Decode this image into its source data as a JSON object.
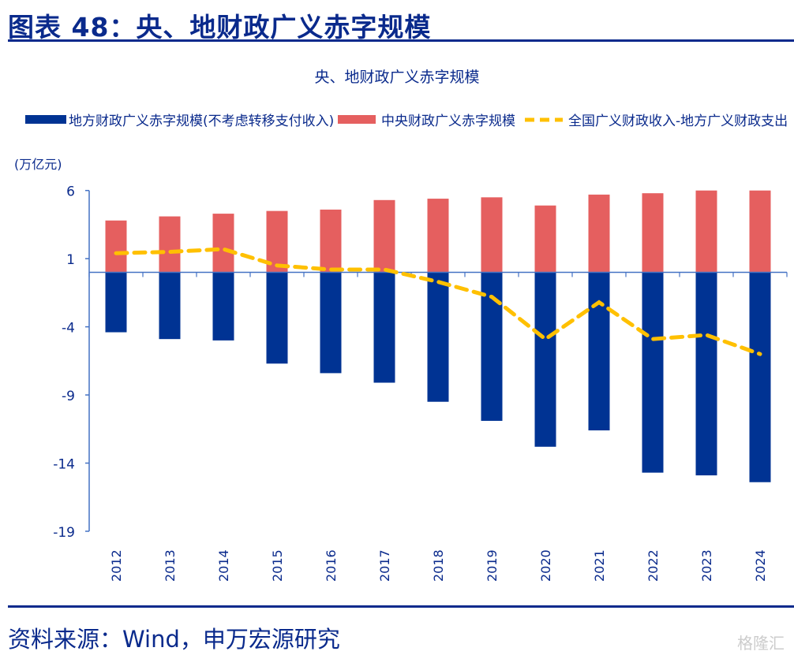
{
  "figure_title": "图表 48：央、地财政广义赤字规模",
  "source": "资料来源：Wind，申万宏源研究",
  "watermark": "格隆汇",
  "chart_data": {
    "type": "bar",
    "title": "央、地财政广义赤字规模",
    "ylabel": "(万亿元)",
    "xlabel": "",
    "ylim": [
      -19,
      6
    ],
    "yticks": [
      "6",
      "1",
      "-4",
      "-9",
      "-14",
      "-19"
    ],
    "ytick_values": [
      6,
      1,
      -4,
      -9,
      -14,
      -19
    ],
    "grid": false,
    "legend_position": "top",
    "categories": [
      "2012",
      "2013",
      "2014",
      "2015",
      "2016",
      "2017",
      "2018",
      "2019",
      "2020",
      "2021",
      "2022",
      "2023",
      "2024"
    ],
    "series": [
      {
        "name": "地方财政广义赤字规模(不考虑转移支付收入)",
        "type": "bar",
        "color": "#003393",
        "values": [
          -4.4,
          -4.9,
          -5.0,
          -6.7,
          -7.4,
          -8.1,
          -9.5,
          -10.9,
          -12.8,
          -11.6,
          -14.7,
          -14.9,
          -15.4
        ]
      },
      {
        "name": "中央财政广义赤字规模",
        "type": "bar",
        "color": "#e55f5f",
        "values": [
          3.8,
          4.1,
          4.3,
          4.5,
          4.6,
          5.3,
          5.4,
          5.5,
          4.9,
          5.7,
          5.8,
          6.0,
          6.0
        ]
      },
      {
        "name": "全国广义财政收入-地方广义财政支出",
        "type": "line",
        "style": "dashed",
        "color": "#ffc000",
        "values": [
          1.4,
          1.5,
          1.7,
          0.5,
          0.2,
          0.2,
          -0.7,
          -1.8,
          -4.9,
          -2.2,
          -4.9,
          -4.6,
          -6.0
        ]
      }
    ]
  }
}
